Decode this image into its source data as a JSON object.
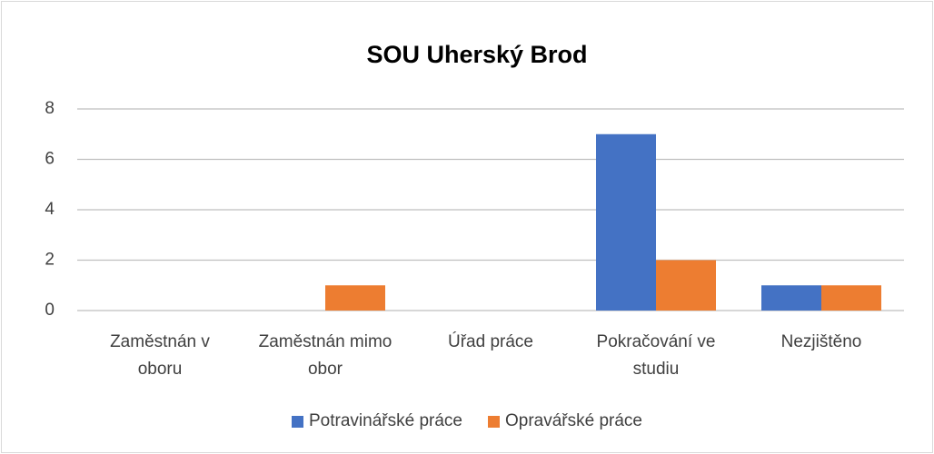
{
  "chart_data": {
    "type": "bar",
    "title": "SOU Uherský Brod",
    "categories": [
      "Zaměstnán v oboru",
      "Zaměstnán mimo obor",
      "Úřad práce",
      "Pokračování ve studiu",
      "Nezjištěno"
    ],
    "series": [
      {
        "name": "Potravinářské práce",
        "color": "#4472c4",
        "values": [
          0,
          0,
          0,
          7,
          1
        ]
      },
      {
        "name": "Opravářské práce",
        "color": "#ed7d31",
        "values": [
          0,
          1,
          0,
          2,
          1
        ]
      }
    ],
    "ylim": [
      0,
      8
    ],
    "yticks": [
      0,
      2,
      4,
      6,
      8
    ],
    "grid": true,
    "legend": "bottom"
  }
}
